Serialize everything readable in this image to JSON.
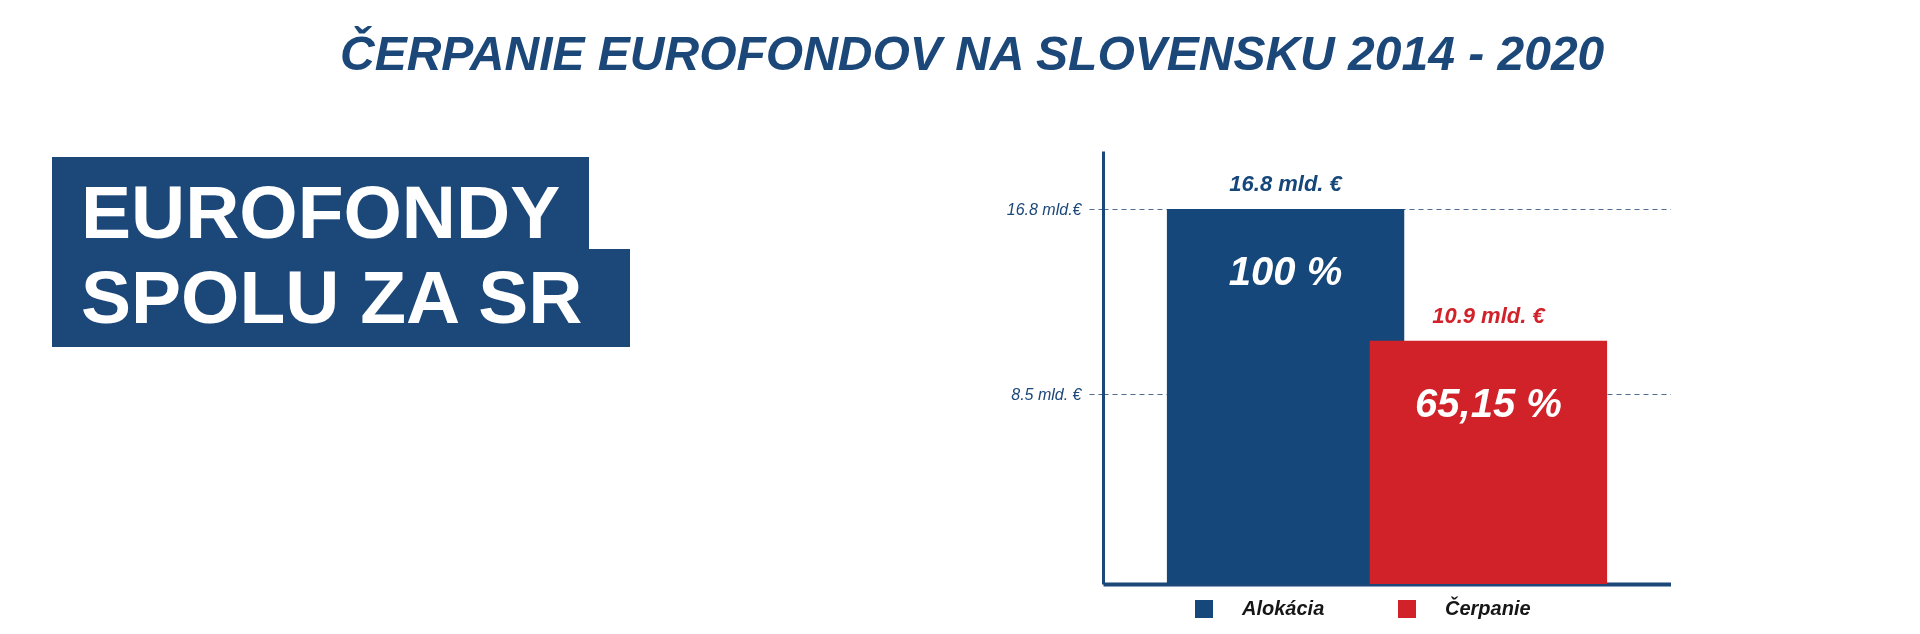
{
  "chart_data": {
    "type": "bar",
    "title": "ČERPANIE EUROFONDOV NA SLOVENSKU 2014 - 2020",
    "subtitle": "EUROFONDY SPOLU ZA SR",
    "categories": [
      null,
      null
    ],
    "series": [
      {
        "name": "Alokácia",
        "color": "#16477a",
        "values": [
          16.8,
          null
        ],
        "value_labels": [
          "16.8 mld. €",
          null
        ]
      },
      {
        "name": "Čerpanie",
        "color": "#d1222a",
        "values": [
          null,
          10.9
        ],
        "value_labels": [
          null,
          "10.9 mld. €"
        ]
      }
    ],
    "annotations": [
      {
        "text": "100 %",
        "y": 16.8
      },
      {
        "text": "65,15 %",
        "y": 10.9
      }
    ],
    "ylim": [
      0,
      19.4
    ],
    "yticks": [
      {
        "value": 16.8,
        "label": "16.8 mld.€"
      },
      {
        "value": 8.5,
        "label": "8.5 mld. €"
      }
    ],
    "tick_labels": "y",
    "grid": "y",
    "legend": "bottom"
  }
}
